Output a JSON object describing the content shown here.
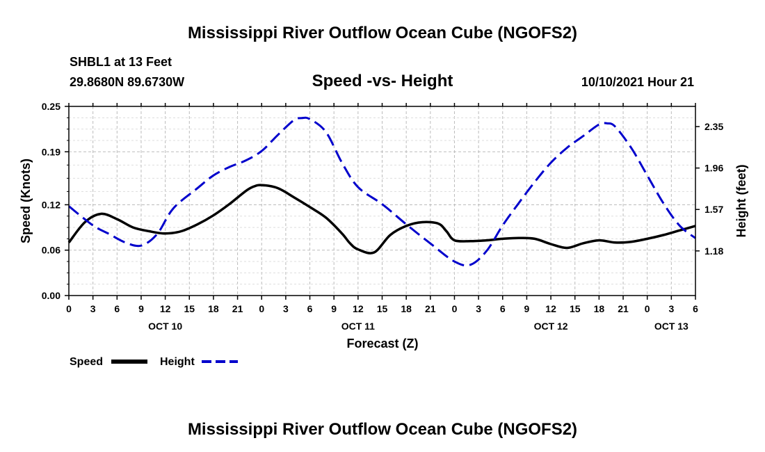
{
  "chart_data": {
    "type": "line",
    "title": "Mississippi River Outflow Ocean Cube (NGOFS2)",
    "footer_title": "Mississippi River Outflow Ocean Cube (NGOFS2)",
    "subtitle": "Speed -vs- Height",
    "station": "SHBL1 at 13 Feet",
    "location": "29.8680N  89.6730W",
    "date_label": "10/10/2021 Hour 21",
    "xlabel": "Forecast (Z)",
    "ylabel_left": "Speed (Knots)",
    "ylabel_right": "Height (feet)",
    "xlim": [
      0,
      78
    ],
    "ylim_left": [
      0,
      0.25
    ],
    "ylim_right": [
      0.76,
      2.54
    ],
    "x_ticks": [
      0,
      3,
      6,
      9,
      12,
      15,
      18,
      21,
      24,
      27,
      30,
      33,
      36,
      39,
      42,
      45,
      48,
      51,
      54,
      57,
      60,
      63,
      66,
      69,
      72,
      75,
      78
    ],
    "x_tick_labels": [
      "0",
      "3",
      "6",
      "9",
      "12",
      "15",
      "18",
      "21",
      "0",
      "3",
      "6",
      "9",
      "12",
      "15",
      "18",
      "21",
      "0",
      "3",
      "6",
      "9",
      "12",
      "15",
      "18",
      "21",
      "0",
      "3",
      "6"
    ],
    "left_ticks": [
      0.0,
      0.06,
      0.12,
      0.19,
      0.25
    ],
    "left_tick_labels": [
      "0.00",
      "0.06",
      "0.12",
      "0.19",
      "0.25"
    ],
    "right_ticks": [
      1.18,
      1.57,
      1.96,
      2.35
    ],
    "right_tick_labels": [
      "1.18",
      "1.57",
      "1.96",
      "2.35"
    ],
    "date_labels": [
      {
        "x": 12,
        "label": "OCT 10"
      },
      {
        "x": 36,
        "label": "OCT 11"
      },
      {
        "x": 60,
        "label": "OCT 12"
      },
      {
        "x": 75,
        "label": "OCT 13"
      }
    ],
    "grid": true,
    "legend_position": "bottom-left",
    "series": [
      {
        "name": "Speed",
        "axis": "left",
        "color": "#000000",
        "dash": "solid",
        "x": [
          0,
          2,
          4,
          6,
          8,
          10,
          12,
          14,
          16,
          18,
          20,
          22,
          23,
          24,
          26,
          28,
          30,
          32,
          34,
          35,
          36,
          38,
          40,
          42,
          44,
          46,
          47,
          48,
          50,
          52,
          54,
          56,
          58,
          60,
          62,
          64,
          66,
          68,
          70,
          72,
          74,
          76,
          78
        ],
        "values": [
          0.07,
          0.097,
          0.108,
          0.101,
          0.09,
          0.085,
          0.082,
          0.085,
          0.094,
          0.106,
          0.121,
          0.138,
          0.144,
          0.146,
          0.142,
          0.13,
          0.117,
          0.103,
          0.082,
          0.069,
          0.061,
          0.057,
          0.08,
          0.092,
          0.097,
          0.095,
          0.085,
          0.073,
          0.072,
          0.073,
          0.075,
          0.076,
          0.075,
          0.068,
          0.063,
          0.069,
          0.073,
          0.07,
          0.071,
          0.075,
          0.08,
          0.086,
          0.092
        ]
      },
      {
        "name": "Height",
        "axis": "right",
        "color": "#0000cc",
        "dash": "dashed",
        "x": [
          0,
          3,
          5,
          7,
          9,
          11,
          13,
          16,
          18,
          20,
          22,
          24,
          26,
          28,
          29,
          30,
          32,
          34,
          36,
          39,
          42,
          45,
          48,
          50,
          52,
          54,
          56,
          58,
          60,
          62,
          64,
          66,
          67,
          68,
          70,
          72,
          74,
          76,
          78
        ],
        "values": [
          1.6,
          1.42,
          1.34,
          1.26,
          1.23,
          1.34,
          1.58,
          1.77,
          1.89,
          1.97,
          2.03,
          2.12,
          2.27,
          2.41,
          2.43,
          2.42,
          2.3,
          2.01,
          1.78,
          1.62,
          1.43,
          1.25,
          1.08,
          1.05,
          1.18,
          1.42,
          1.63,
          1.83,
          2.01,
          2.15,
          2.26,
          2.37,
          2.38,
          2.35,
          2.15,
          1.89,
          1.63,
          1.42,
          1.3
        ]
      }
    ]
  },
  "legend": {
    "speed_label": "Speed",
    "height_label": "Height"
  }
}
